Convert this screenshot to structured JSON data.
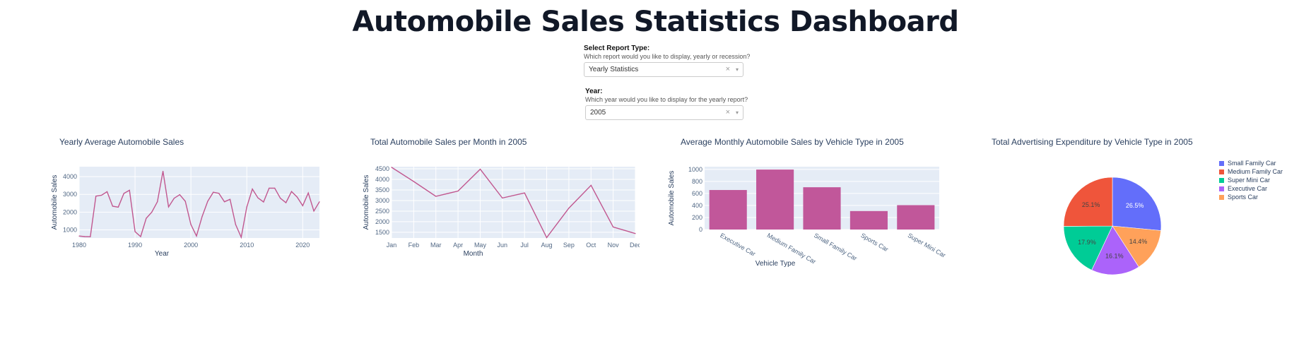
{
  "page": {
    "title": "Automobile Sales Statistics Dashboard"
  },
  "controls": {
    "report": {
      "label": "Select Report Type:",
      "description": "Which report would you like to display, yearly or recession?",
      "value": "Yearly Statistics",
      "clear": "×",
      "chevron": "▾"
    },
    "year": {
      "label": "Year:",
      "description": "Which year would you like to display for the yearly report?",
      "value": "2005",
      "clear": "×",
      "chevron": "▾"
    }
  },
  "chart_data": [
    {
      "type": "line",
      "title": "Yearly Average Automobile Sales",
      "xlabel": "Year",
      "ylabel": "Automobile Sales",
      "color": "#c1578f",
      "xlim": [
        1980,
        2023
      ],
      "ylim": [
        540,
        4560
      ],
      "xticks": [
        1980,
        1990,
        2000,
        2010,
        2020
      ],
      "yticks": [
        1000,
        2000,
        3000,
        4000
      ],
      "x": [
        1980,
        1981,
        1982,
        1983,
        1984,
        1985,
        1986,
        1987,
        1988,
        1989,
        1990,
        1991,
        1992,
        1993,
        1994,
        1995,
        1996,
        1997,
        1998,
        1999,
        2000,
        2001,
        2002,
        2003,
        2004,
        2005,
        2006,
        2007,
        2008,
        2009,
        2010,
        2011,
        2012,
        2013,
        2014,
        2015,
        2016,
        2017,
        2018,
        2019,
        2020,
        2021,
        2022,
        2023
      ],
      "y": [
        650,
        620,
        610,
        2900,
        2950,
        3150,
        2330,
        2280,
        3050,
        3230,
        900,
        620,
        1650,
        2000,
        2580,
        4300,
        2290,
        2780,
        2980,
        2610,
        1300,
        650,
        1750,
        2610,
        3120,
        3060,
        2580,
        2720,
        1300,
        580,
        2290,
        3300,
        2800,
        2570,
        3350,
        3350,
        2780,
        2530,
        3160,
        2850,
        2360,
        3080,
        2060,
        2580
      ]
    },
    {
      "type": "line",
      "title": "Total Automobile Sales per Month in 2005",
      "xlabel": "Month",
      "ylabel": "Automobile Sales",
      "color": "#c1578f",
      "categories": [
        "Jan",
        "Feb",
        "Mar",
        "Apr",
        "May",
        "Jun",
        "Jul",
        "Aug",
        "Sep",
        "Oct",
        "Nov",
        "Dec"
      ],
      "ylim": [
        1230,
        4600
      ],
      "yticks": [
        1500,
        2000,
        2500,
        3000,
        3500,
        4000,
        4500
      ],
      "values": [
        4570,
        3900,
        3200,
        3450,
        4480,
        3120,
        3360,
        1250,
        2640,
        3720,
        1750,
        1440
      ]
    },
    {
      "type": "bar",
      "title": "Average Monthly Automobile Sales by Vehicle Type in 2005",
      "xlabel": "Vehicle Type",
      "ylabel": "Automobile Sales",
      "color": "#c1579a",
      "categories": [
        "Executive Car",
        "Medium Family Car",
        "Small Family Car",
        "Sports Car",
        "Super Mini Car"
      ],
      "values": [
        657,
        997,
        703,
        307,
        405
      ],
      "ylim": [
        0,
        1045
      ],
      "yticks": [
        0,
        200,
        400,
        600,
        800,
        1000
      ]
    },
    {
      "type": "pie",
      "title": "Total Advertising Expenditure by Vehicle Type in 2005",
      "legend_position": "right",
      "slices": [
        {
          "name": "Small Family Car",
          "value": 26.5,
          "label": "26.5%",
          "color": "#636efa",
          "label_color": "#ffffff"
        },
        {
          "name": "Sports Car",
          "value": 14.4,
          "label": "14.4%",
          "color": "#ffa15a",
          "label_color": "#444444"
        },
        {
          "name": "Executive Car",
          "value": 16.1,
          "label": "16.1%",
          "color": "#ab63fa",
          "label_color": "#444444"
        },
        {
          "name": "Super Mini Car",
          "value": 17.9,
          "label": "17.9%",
          "color": "#00cc96",
          "label_color": "#444444"
        },
        {
          "name": "Medium Family Car",
          "value": 25.1,
          "label": "25.1%",
          "color": "#ef553b",
          "label_color": "#444444"
        }
      ],
      "legend": [
        {
          "name": "Small Family Car",
          "color": "#636efa"
        },
        {
          "name": "Medium Family Car",
          "color": "#ef553b"
        },
        {
          "name": "Super Mini Car",
          "color": "#00cc96"
        },
        {
          "name": "Executive Car",
          "color": "#ab63fa"
        },
        {
          "name": "Sports Car",
          "color": "#ffa15a"
        }
      ]
    }
  ]
}
